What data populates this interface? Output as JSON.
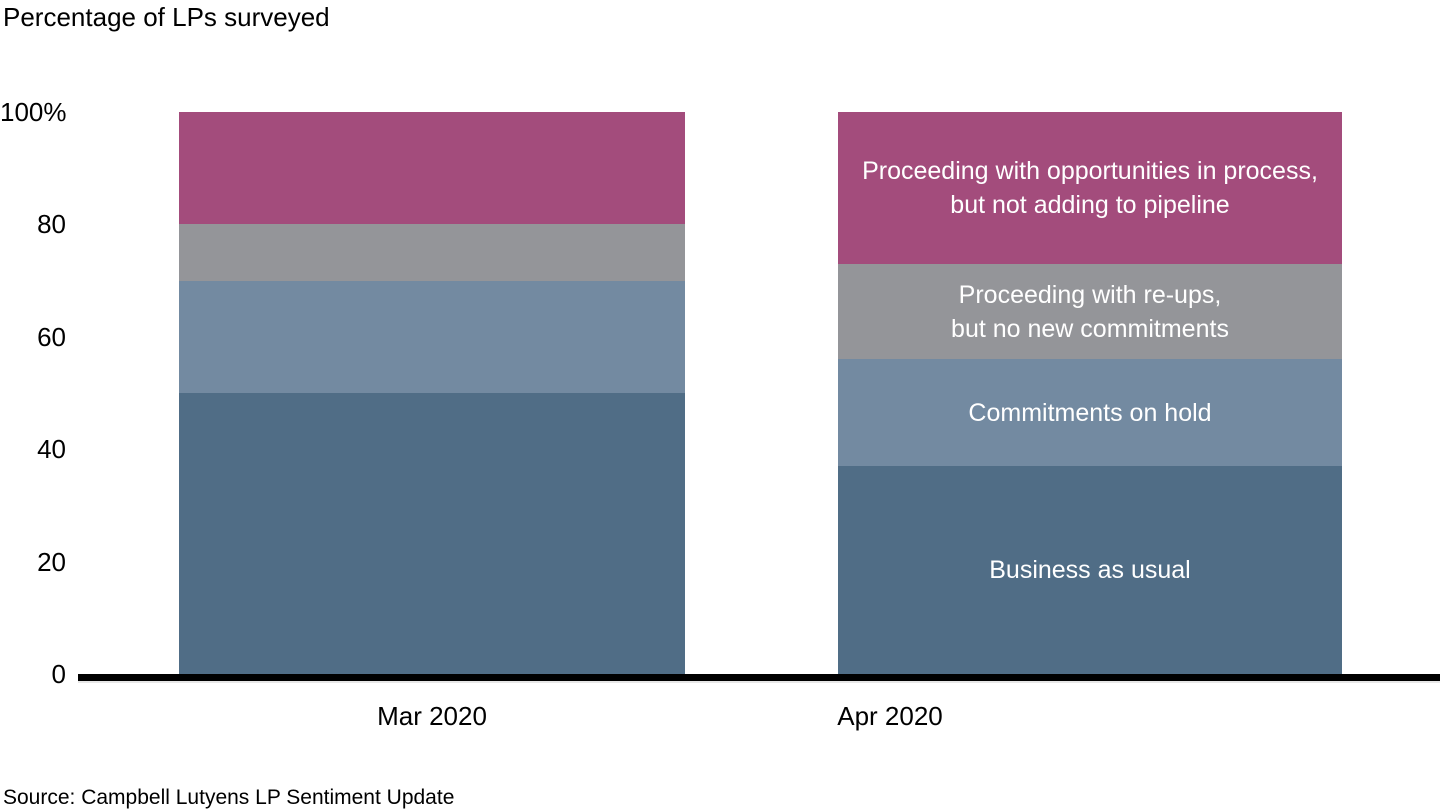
{
  "title": "Percentage of LPs surveyed",
  "source": "Source: Campbell Lutyens LP Sentiment Update",
  "y_axis": {
    "tick_labels": [
      "100%",
      "80",
      "60",
      "40",
      "20",
      "0"
    ],
    "tick_values": [
      100,
      80,
      60,
      40,
      20,
      0
    ]
  },
  "x_axis": {
    "labels": [
      "Mar 2020",
      "Apr 2020"
    ]
  },
  "chart_data": {
    "type": "bar",
    "stacked": true,
    "title": "Percentage of LPs surveyed",
    "categories": [
      "Mar 2020",
      "Apr 2020"
    ],
    "ylim": [
      0,
      100
    ],
    "grid": false,
    "legend_position": "labels-inside-second-bar",
    "series": [
      {
        "name": "Business as usual",
        "color": "#506D86",
        "values": [
          50,
          37
        ],
        "label_lines": [
          "Business as usual"
        ]
      },
      {
        "name": "Commitments on hold",
        "color": "#738AA1",
        "values": [
          20,
          19
        ],
        "label_lines": [
          "Commitments on hold"
        ]
      },
      {
        "name": "Proceeding with re-ups, but no new commitments",
        "color": "#949599",
        "values": [
          10,
          17
        ],
        "label_lines": [
          "Proceeding with re-ups,",
          "but no new commitments"
        ]
      },
      {
        "name": "Proceeding with opportunities in process, but not adding to pipeline",
        "color": "#A34C7C",
        "values": [
          20,
          27
        ],
        "label_lines": [
          "Proceeding with opportunities in process,",
          "but not adding to pipeline"
        ]
      }
    ],
    "source": "Campbell Lutyens LP Sentiment Update"
  }
}
